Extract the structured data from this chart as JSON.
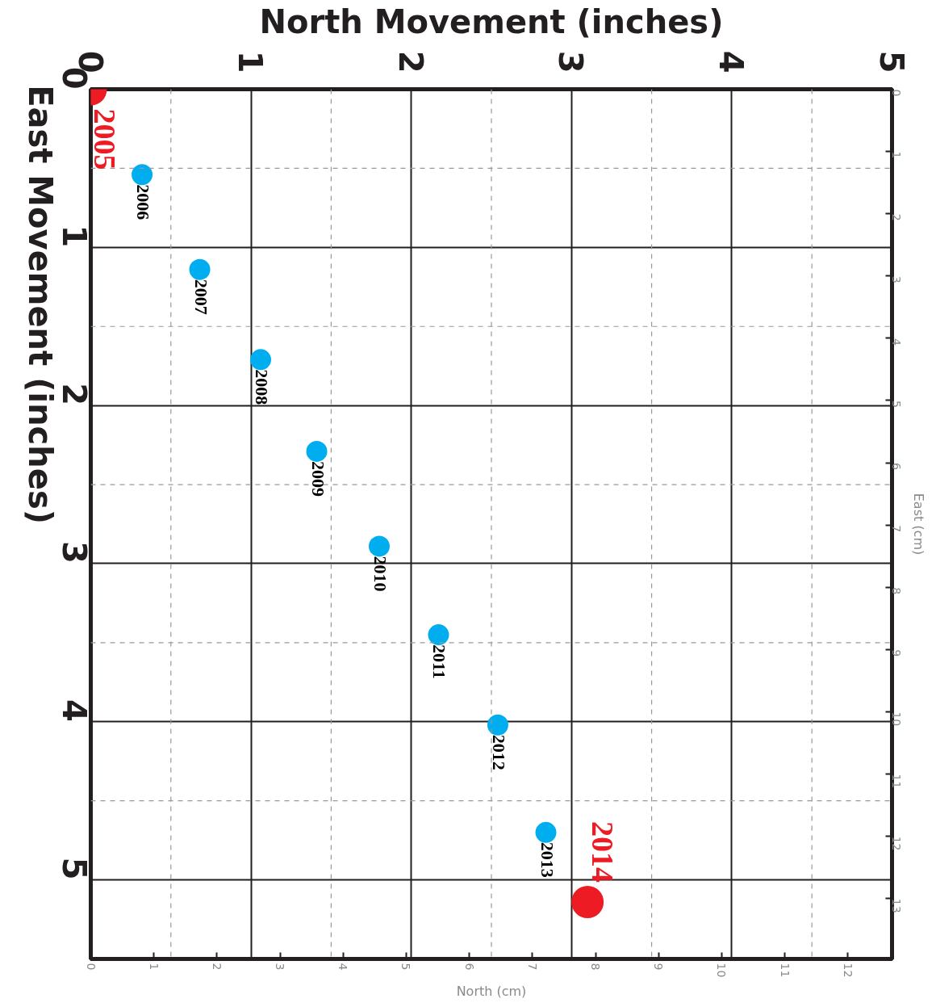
{
  "chart_data": {
    "type": "scatter",
    "xlabel": "North Movement (inches)",
    "ylabel": "East Movement (inches)",
    "x2label": "North (cm)",
    "y2label": "East (cm)",
    "xlim": [
      0,
      5
    ],
    "xticks": [
      0,
      1,
      2,
      3,
      4,
      5
    ],
    "ylim": [
      5.5,
      0
    ],
    "yticks": [
      0,
      1,
      2,
      3,
      4,
      5
    ],
    "x2lim": [
      0,
      12.7
    ],
    "x2ticks": [
      0,
      1,
      2,
      3,
      4,
      5,
      6,
      7,
      8,
      9,
      10,
      11,
      12
    ],
    "y2lim": [
      13.97,
      0
    ],
    "y2ticks": [
      0,
      1,
      2,
      3,
      4,
      5,
      6,
      7,
      8,
      9,
      10,
      11,
      12,
      13
    ],
    "grid": true,
    "marker": "circle",
    "series": [
      {
        "color": "#ed1c24",
        "x": [
          0,
          3.1
        ],
        "values": [
          0,
          5.14
        ]
      },
      {
        "color": "#00aeef",
        "x": [
          0.32,
          0.68,
          1.06,
          1.41,
          1.8,
          2.17,
          2.54,
          2.84
        ],
        "values": [
          0.54,
          1.14,
          1.71,
          2.29,
          2.89,
          3.45,
          4.02,
          4.7
        ]
      }
    ],
    "annotations": [
      {
        "text": "2005",
        "x": 0,
        "y": 0
      },
      {
        "text": "2006",
        "x": 0.32,
        "y": 0.54
      },
      {
        "text": "2007",
        "x": 0.68,
        "y": 1.14
      },
      {
        "text": "2008",
        "x": 1.06,
        "y": 1.71
      },
      {
        "text": "2009",
        "x": 1.41,
        "y": 2.29
      },
      {
        "text": "2010",
        "x": 1.8,
        "y": 2.89
      },
      {
        "text": "2011",
        "x": 2.17,
        "y": 3.45
      },
      {
        "text": "2012",
        "x": 2.54,
        "y": 4.02
      },
      {
        "text": "2013",
        "x": 2.84,
        "y": 4.7
      },
      {
        "text": "2014",
        "x": 3.1,
        "y": 5.14
      }
    ]
  }
}
